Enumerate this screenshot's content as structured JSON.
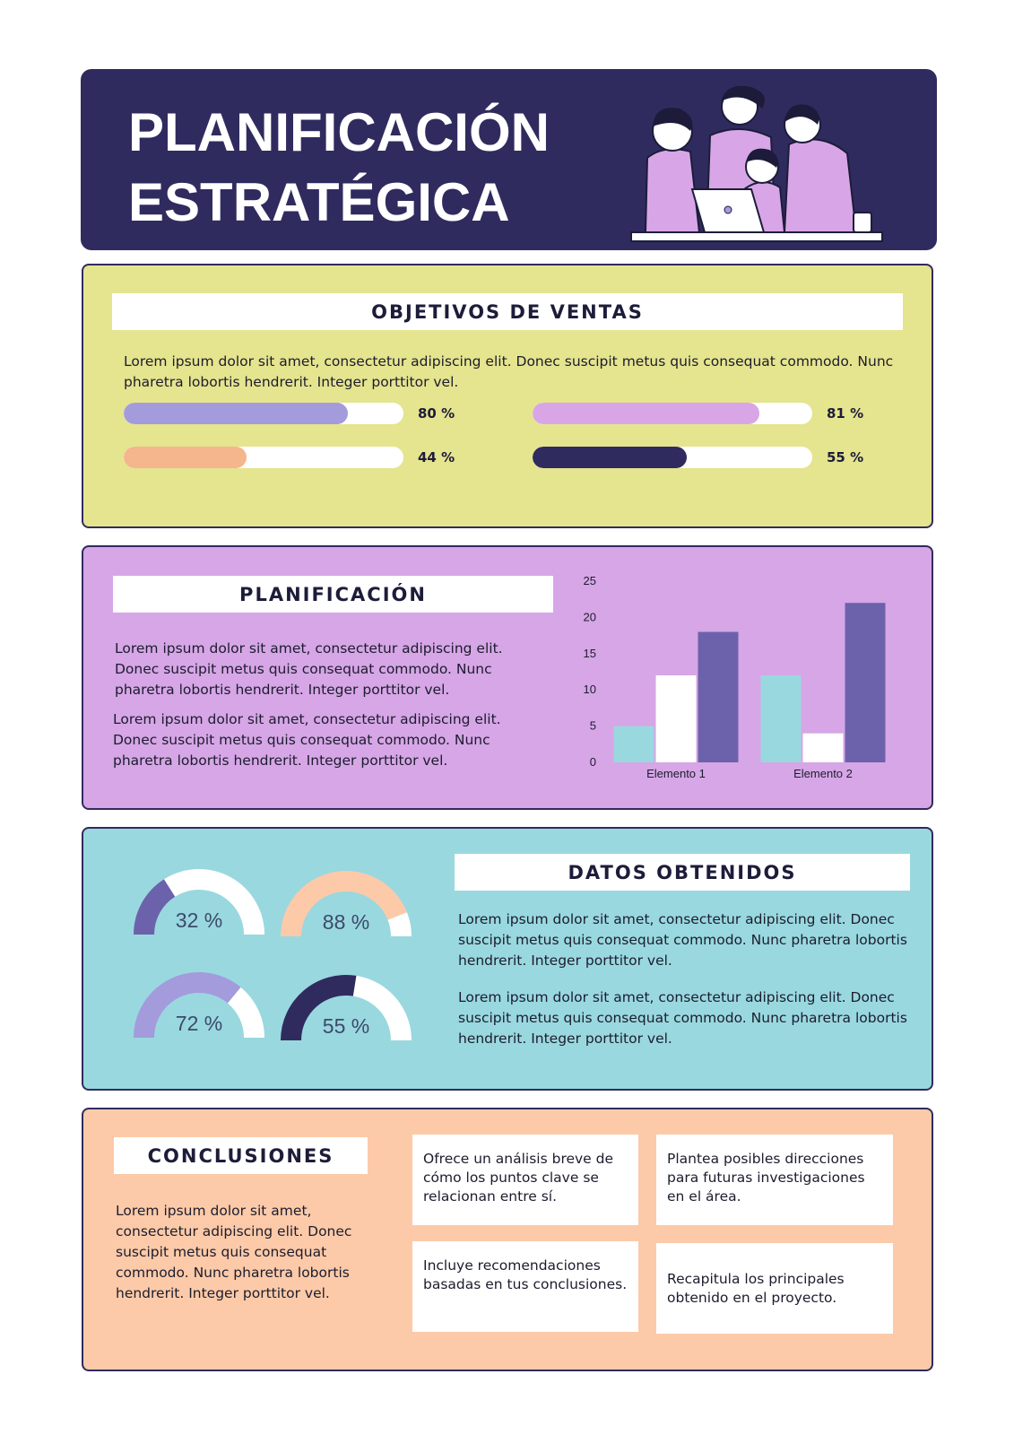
{
  "header": {
    "title": "PLANIFICACIÓN ESTRATÉGICA"
  },
  "objetivos": {
    "title": "OBJETIVOS DE VENTAS",
    "text": "Lorem ipsum dolor sit amet, consectetur adipiscing elit. Donec suscipit metus quis consequat commodo. Nunc pharetra lobortis hendrerit. Integer porttitor vel.",
    "bars": [
      {
        "value": 80,
        "label": "80 %",
        "color": "#a39bdc"
      },
      {
        "value": 81,
        "label": "81 %",
        "color": "#d8a6e6"
      },
      {
        "value": 44,
        "label": "44 %",
        "color": "#f5b58d"
      },
      {
        "value": 55,
        "label": "55 %",
        "color": "#302b5e"
      }
    ]
  },
  "planificacion": {
    "title": "PLANIFICACIÓN",
    "paragraphs": [
      "Lorem ipsum dolor sit amet, consectetur adipiscing elit. Donec suscipit metus quis consequat commodo. Nunc pharetra lobortis hendrerit. Integer porttitor vel.",
      "Lorem ipsum dolor sit amet, consectetur adipiscing elit. Donec suscipit metus quis consequat commodo. Nunc pharetra lobortis hendrerit. Integer porttitor vel."
    ]
  },
  "chart_data": {
    "type": "bar",
    "categories": [
      "Elemento 1",
      "Elemento 2"
    ],
    "series": [
      {
        "color": "#99d8df",
        "values": [
          5,
          12
        ]
      },
      {
        "color": "#ffffff",
        "values": [
          12,
          4
        ]
      },
      {
        "color": "#6c62ab",
        "values": [
          18,
          22
        ]
      }
    ],
    "ylim": [
      0,
      25
    ],
    "yticks": [
      0,
      5,
      10,
      15,
      20,
      25
    ],
    "grid": false
  },
  "datos": {
    "title": "DATOS OBTENIDOS",
    "paragraphs": [
      "Lorem ipsum dolor sit amet, consectetur adipiscing elit. Donec suscipit metus quis consequat commodo. Nunc pharetra lobortis hendrerit. Integer porttitor vel.",
      "Lorem ipsum dolor sit amet, consectetur adipiscing elit. Donec suscipit metus quis consequat commodo. Nunc pharetra lobortis hendrerit. Integer porttitor vel."
    ],
    "gauges": [
      {
        "value": 32,
        "label": "32 %",
        "color": "#6c62ab"
      },
      {
        "value": 88,
        "label": "88 %",
        "color": "#fccaa8"
      },
      {
        "value": 72,
        "label": "72 %",
        "color": "#a39bdc"
      },
      {
        "value": 55,
        "label": "55 %",
        "color": "#302b5e"
      }
    ]
  },
  "conclusiones": {
    "title": "CONCLUSIONES",
    "text": "Lorem ipsum dolor sit amet, consectetur adipiscing elit. Donec suscipit metus quis consequat commodo. Nunc pharetra lobortis hendrerit. Integer porttitor vel.",
    "cards": [
      "Ofrece un análisis breve de cómo los puntos clave se relacionan entre sí.",
      "Plantea posibles direcciones para futuras investigaciones en el área.",
      "Incluye recomendaciones basadas en tus conclusiones.",
      "Recapitula los principales obtenido en el proyecto."
    ]
  }
}
